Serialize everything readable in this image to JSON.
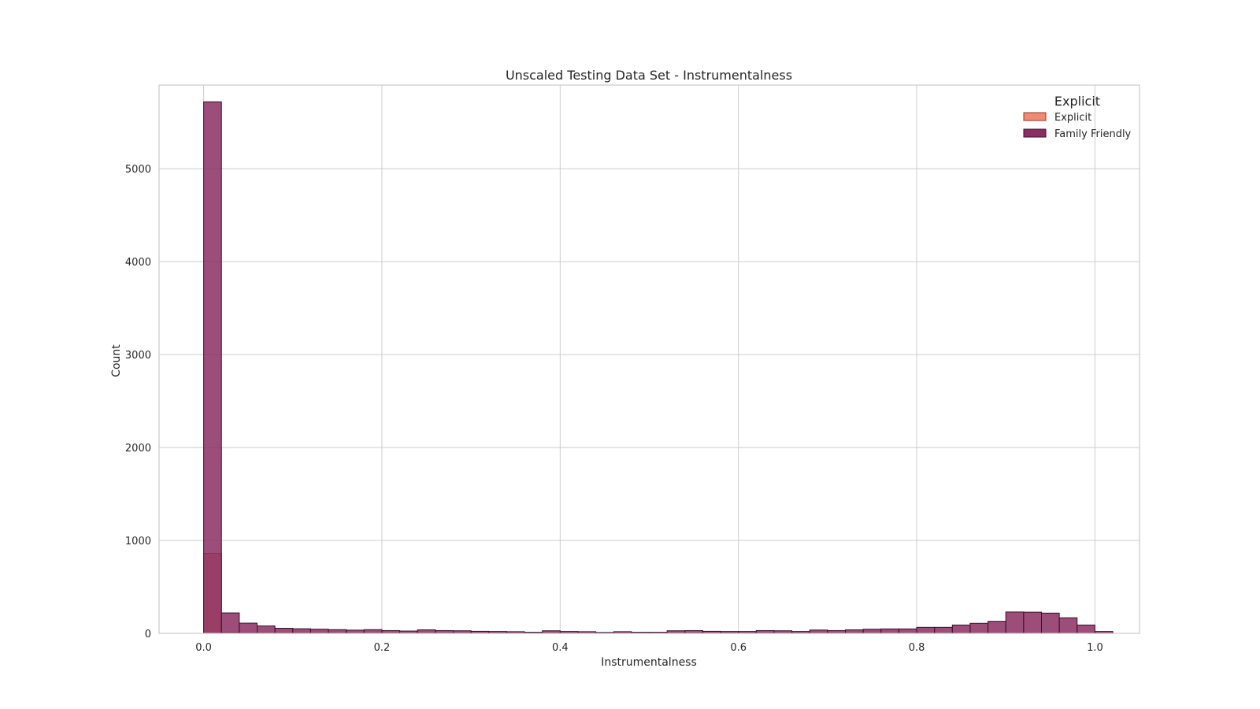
{
  "chart_data": {
    "type": "histogram",
    "title": "Unscaled Testing Data Set - Instrumentalness",
    "xlabel": "Instrumentalness",
    "ylabel": "Count",
    "xlim": [
      -0.05,
      1.05
    ],
    "ylim": [
      0,
      5900
    ],
    "xticks": [
      0.0,
      0.2,
      0.4,
      0.6,
      0.8,
      1.0
    ],
    "xtick_labels": [
      "0.0",
      "0.2",
      "0.4",
      "0.6",
      "0.8",
      "1.0"
    ],
    "yticks": [
      0,
      1000,
      2000,
      3000,
      4000,
      5000
    ],
    "ytick_labels": [
      "0",
      "1000",
      "2000",
      "3000",
      "4000",
      "5000"
    ],
    "grid": true,
    "legend": {
      "title": "Explicit",
      "placement": "top-right"
    },
    "bin_start": 0.0,
    "bin_width": 0.02,
    "series": [
      {
        "name": "Explicit",
        "color": "#f08a70",
        "edge_color": "#8c3a2f",
        "values": [
          860,
          12,
          8,
          6,
          5,
          4,
          4,
          3,
          3,
          3,
          3,
          2,
          2,
          2,
          2,
          2,
          2,
          2,
          2,
          2,
          2,
          2,
          2,
          2,
          2,
          2,
          2,
          2,
          2,
          2,
          2,
          2,
          2,
          2,
          2,
          2,
          2,
          2,
          2,
          2,
          2,
          2,
          3,
          3,
          3,
          3,
          3,
          2,
          2,
          1
        ]
      },
      {
        "name": "Family Friendly",
        "color": "#8b2e63",
        "edge_color": "#3a0f28",
        "values": [
          5720,
          220,
          110,
          80,
          55,
          50,
          45,
          40,
          35,
          40,
          30,
          25,
          38,
          30,
          28,
          22,
          20,
          18,
          12,
          28,
          20,
          18,
          10,
          18,
          12,
          12,
          28,
          30,
          22,
          20,
          20,
          30,
          28,
          20,
          36,
          30,
          38,
          45,
          48,
          48,
          65,
          65,
          90,
          108,
          130,
          230,
          228,
          218,
          168,
          90,
          20
        ]
      }
    ]
  }
}
